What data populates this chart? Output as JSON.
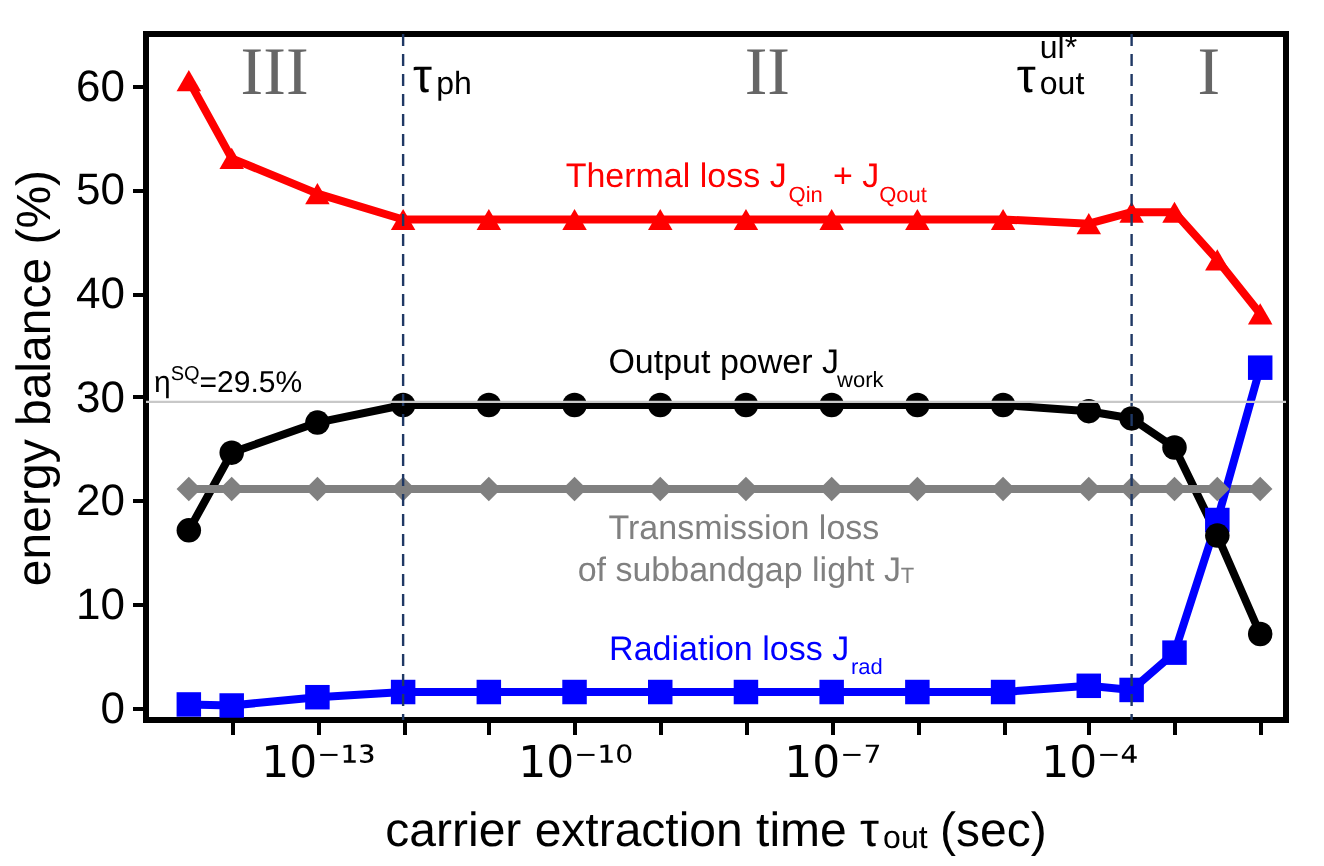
{
  "chart_data": {
    "type": "line",
    "xlabel": "carrier extraction time τ$_{out}$ (sec)",
    "ylabel": "energy balance (%)",
    "x": [
      3.16e-15,
      1e-14,
      1e-13,
      1e-12,
      1e-11,
      1e-10,
      1e-09,
      1e-08,
      1e-07,
      1e-06,
      1e-05,
      0.0001,
      0.000316,
      0.001,
      0.00316,
      0.01
    ],
    "series": [
      {
        "name": "Thermal loss J$_{Qin}$ + J$_{Qout}$",
        "color": "#ff0000",
        "marker": "triangle",
        "values": [
          60.5,
          53.0,
          49.6,
          47.1,
          47.1,
          47.1,
          47.1,
          47.1,
          47.1,
          47.1,
          47.1,
          46.7,
          47.8,
          47.8,
          43.2,
          38.0
        ]
      },
      {
        "name": "Output power J$_{work}$",
        "color": "#000000",
        "marker": "circle",
        "values": [
          17.1,
          24.6,
          27.5,
          29.2,
          29.2,
          29.2,
          29.2,
          29.2,
          29.2,
          29.2,
          29.2,
          28.6,
          27.9,
          25.1,
          16.6,
          7.1
        ]
      },
      {
        "name": "Transmission loss\nof subbandgap light J$_{T}$",
        "color": "#808080",
        "marker": "diamond",
        "values": [
          21.1,
          21.1,
          21.1,
          21.1,
          21.1,
          21.1,
          21.1,
          21.1,
          21.1,
          21.1,
          21.1,
          21.1,
          21.1,
          21.1,
          21.1,
          21.1
        ]
      },
      {
        "name": "Radiation loss J$_{rad}$",
        "color": "#0000ff",
        "marker": "square",
        "values": [
          0.3,
          0.2,
          1.0,
          1.5,
          1.5,
          1.5,
          1.5,
          1.5,
          1.5,
          1.5,
          1.5,
          2.1,
          1.7,
          5.3,
          18.1,
          32.8
        ]
      }
    ],
    "log": "x",
    "xlim": [
      1e-15,
      0.02
    ],
    "xticks": [
      {
        "value": 1e-14,
        "label": null
      },
      {
        "value": 1e-13,
        "label": "10⁻¹³"
      },
      {
        "value": 1e-12,
        "label": null
      },
      {
        "value": 1e-11,
        "label": null
      },
      {
        "value": 1e-10,
        "label": "10⁻¹⁰"
      },
      {
        "value": 1e-09,
        "label": null
      },
      {
        "value": 1e-08,
        "label": null
      },
      {
        "value": 1e-07,
        "label": "10⁻⁷"
      },
      {
        "value": 1e-06,
        "label": null
      },
      {
        "value": 1e-05,
        "label": null
      },
      {
        "value": 0.0001,
        "label": "10⁻⁴"
      },
      {
        "value": 0.001,
        "label": null
      },
      {
        "value": 0.01,
        "label": null
      }
    ],
    "ylim": [
      -1.2,
      65
    ],
    "yticks": [
      0,
      10,
      20,
      30,
      40,
      50,
      60
    ],
    "ref_lines": [
      {
        "axis": "x",
        "value": 1e-12,
        "label": "τ$_{ph}$",
        "color": "#1f3864",
        "line_style": "dashed"
      },
      {
        "axis": "x",
        "value": 0.000316,
        "label": "τ$^{ul*}$$_{out}$",
        "color": "#1f3864",
        "line_style": "dashed"
      },
      {
        "axis": "y",
        "value": 29.5,
        "label": "η$^{SQ}$=29.5%",
        "color": "#c8c8c8",
        "line_style": "solid"
      }
    ],
    "annotations": [
      "III",
      "II",
      "I"
    ],
    "grid": false,
    "line_style": "solid"
  }
}
